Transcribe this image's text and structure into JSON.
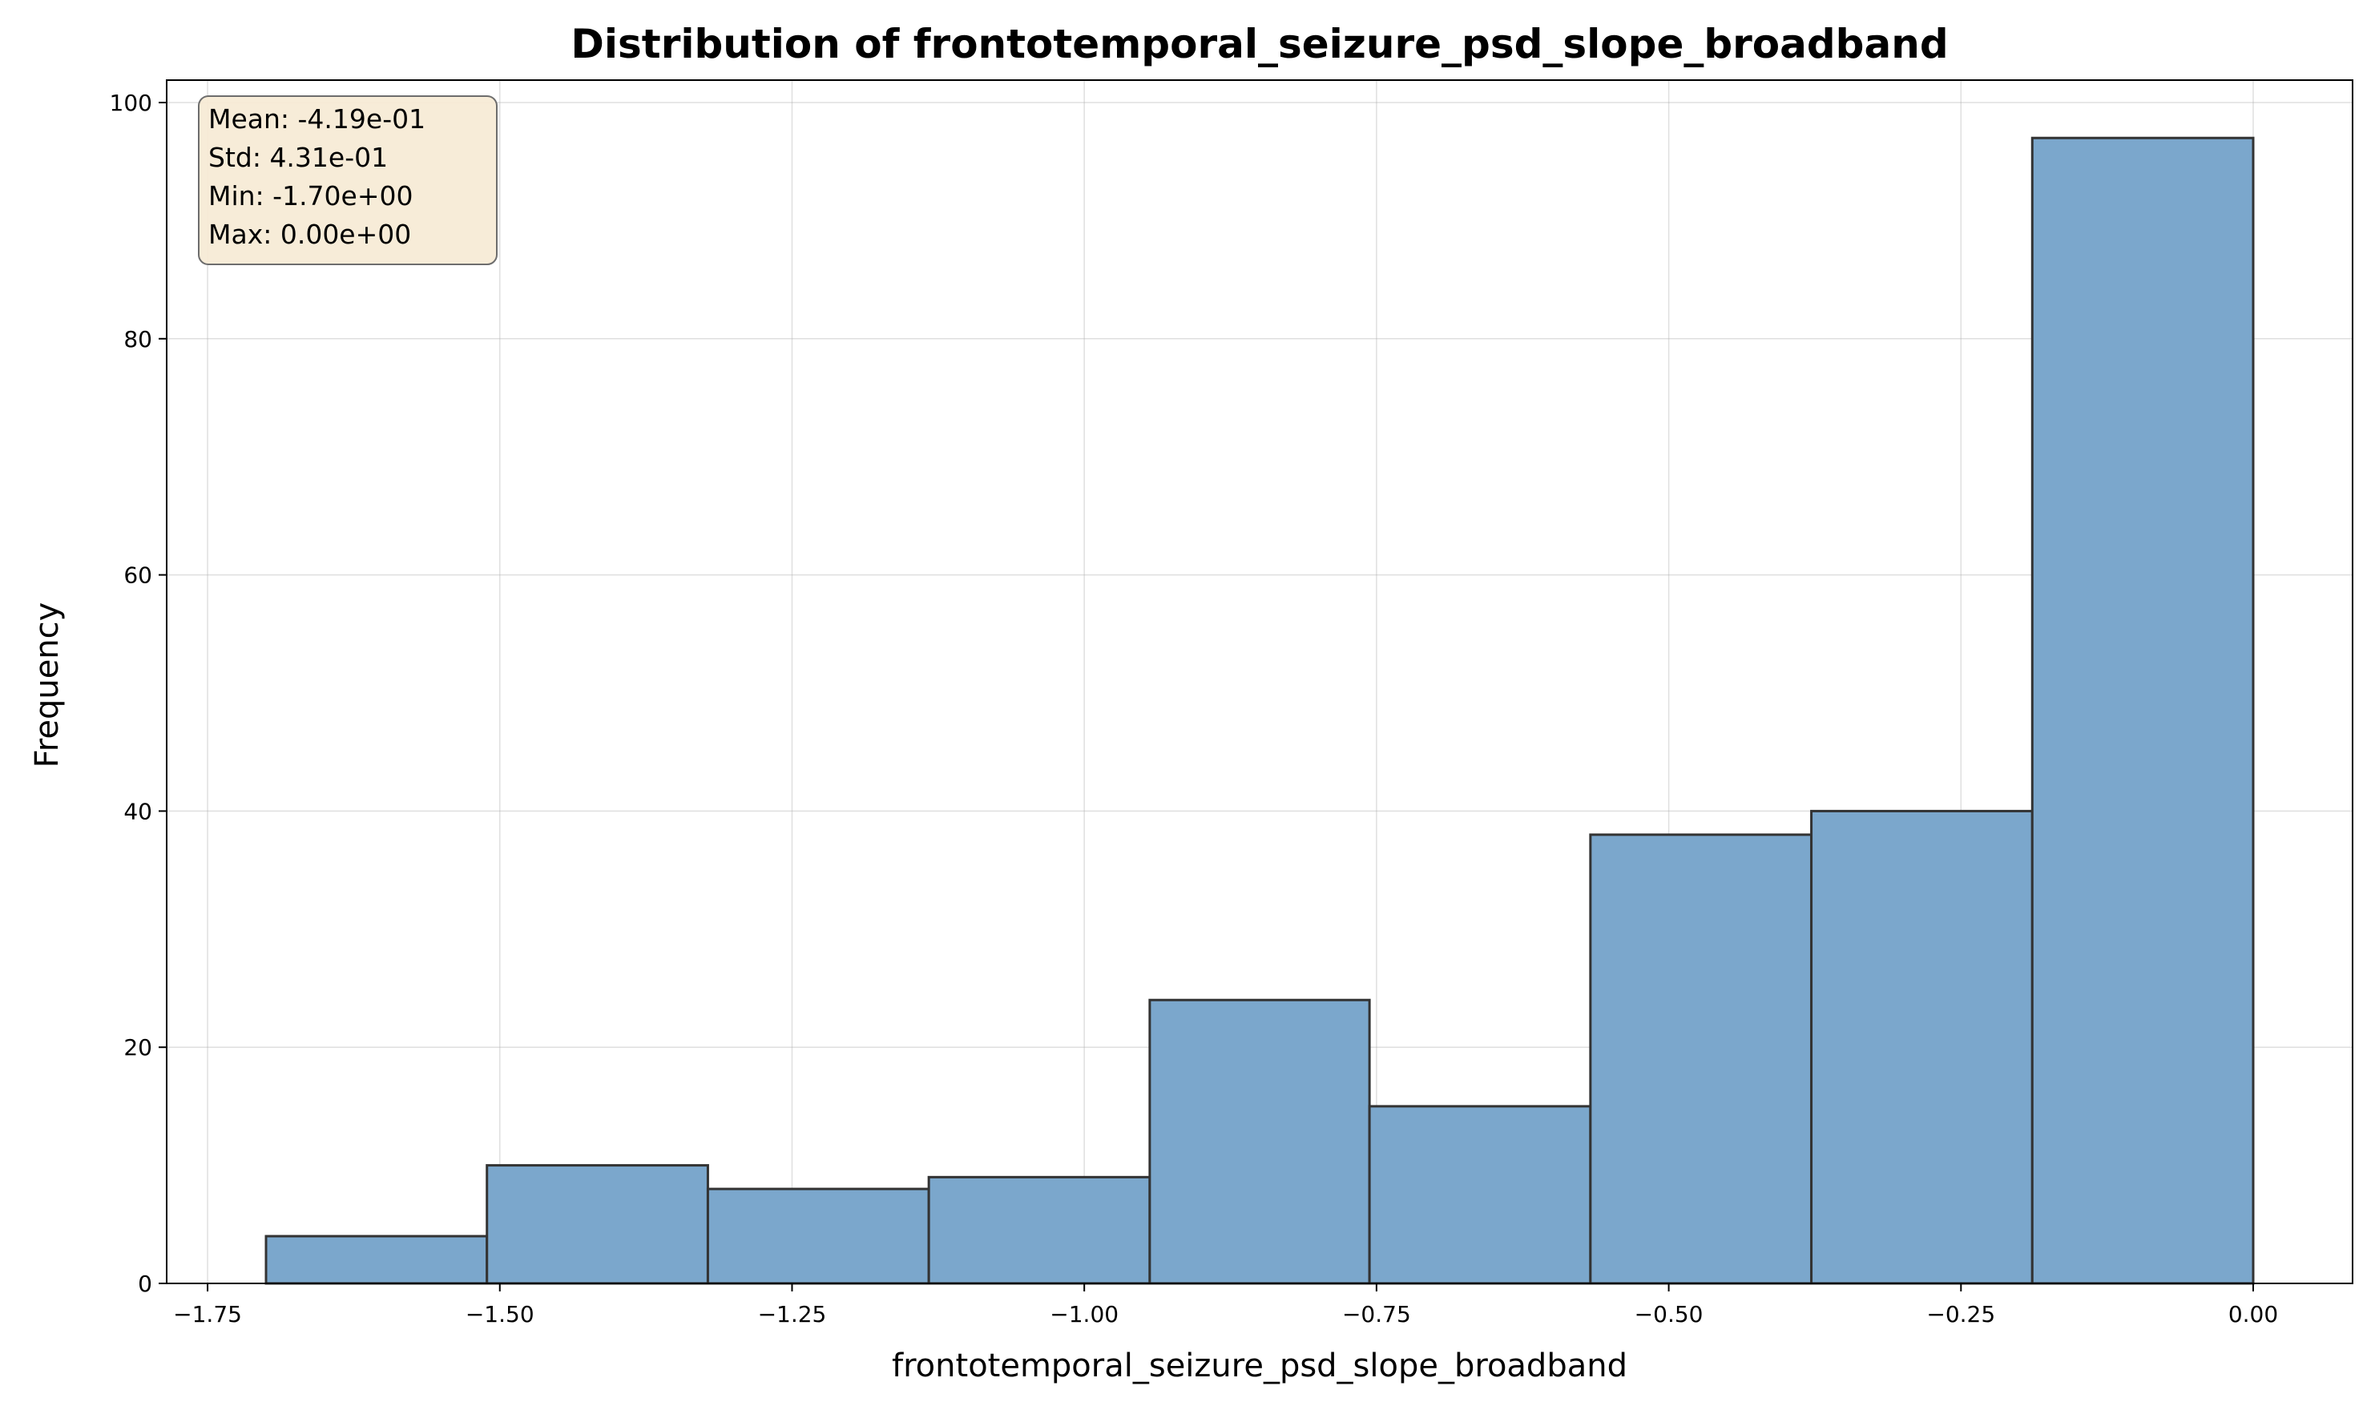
{
  "chart_data": {
    "type": "bar",
    "title": "Distribution of frontotemporal_seizure_psd_slope_broadband",
    "xlabel": "frontotemporal_seizure_psd_slope_broadband",
    "ylabel": "Frequency",
    "xlim": [
      -1.785,
      0.085
    ],
    "ylim": [
      0,
      101.9
    ],
    "x_ticks": [
      -1.75,
      -1.5,
      -1.25,
      -1.0,
      -0.75,
      -0.5,
      -0.25,
      0.0
    ],
    "x_tick_labels": [
      "−1.75",
      "−1.50",
      "−1.25",
      "−1.00",
      "−0.75",
      "−0.50",
      "−0.25",
      "0.00"
    ],
    "y_ticks": [
      0,
      20,
      40,
      60,
      80,
      100
    ],
    "y_tick_labels": [
      "0",
      "20",
      "40",
      "60",
      "80",
      "100"
    ],
    "bin_edges": [
      -1.7,
      -1.511,
      -1.322,
      -1.133,
      -0.944,
      -0.756,
      -0.567,
      -0.378,
      -0.189,
      0.0
    ],
    "values": [
      4,
      10,
      8,
      9,
      24,
      15,
      38,
      40,
      97
    ],
    "grid": true,
    "bar_color": "#7ba7cc",
    "edge_color": "#333333",
    "stats": [
      "Mean: -4.19e-01",
      "Std: 4.31e-01",
      "Min: -1.70e+00",
      "Max: 0.00e+00"
    ],
    "stats_box_color": "#f7ebd6",
    "stats_box_placement": "top-left"
  }
}
